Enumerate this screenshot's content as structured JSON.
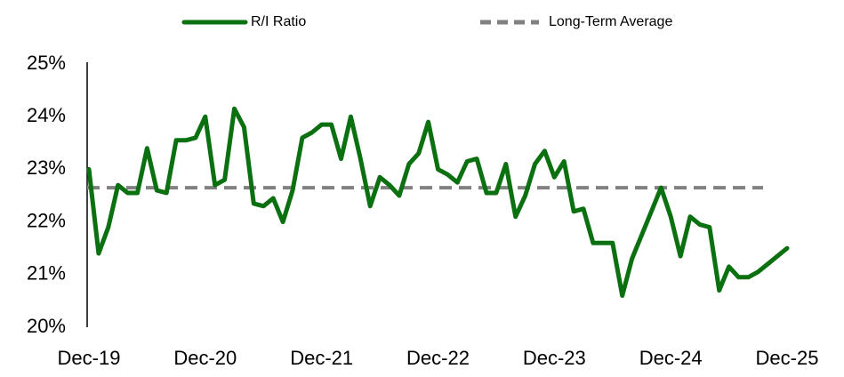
{
  "chart_data": {
    "type": "line",
    "categories": [
      "Dec-19",
      null,
      null,
      null,
      null,
      null,
      null,
      null,
      null,
      null,
      null,
      null,
      "Dec-20",
      null,
      null,
      null,
      null,
      null,
      null,
      null,
      null,
      null,
      null,
      null,
      "Dec-21",
      null,
      null,
      null,
      null,
      null,
      null,
      null,
      null,
      null,
      null,
      null,
      "Dec-22",
      null,
      null,
      null,
      null,
      null,
      null,
      null,
      null,
      null,
      null,
      null,
      "Dec-23",
      null,
      null,
      null,
      null,
      null,
      null,
      null,
      null,
      null,
      null,
      null,
      "Dec-24",
      null,
      null,
      null,
      null,
      null,
      null,
      null,
      null,
      null,
      null,
      null,
      "Dec-25"
    ],
    "series": [
      {
        "name": "R/I Ratio",
        "color": "#0a7010",
        "values": [
          23.0,
          21.4,
          21.9,
          22.7,
          22.55,
          22.55,
          23.4,
          22.6,
          22.55,
          23.55,
          23.55,
          23.6,
          24.0,
          22.7,
          22.8,
          24.15,
          23.8,
          22.35,
          22.3,
          22.45,
          22.0,
          22.6,
          23.6,
          23.7,
          23.85,
          23.85,
          23.2,
          24.0,
          23.2,
          22.3,
          22.85,
          22.7,
          22.5,
          23.1,
          23.3,
          23.9,
          23.0,
          22.9,
          22.75,
          23.15,
          23.2,
          22.55,
          22.55,
          23.1,
          22.1,
          22.5,
          23.1,
          23.35,
          22.85,
          23.15,
          22.2,
          22.25,
          21.6,
          21.6,
          21.6,
          20.6,
          21.3,
          21.75,
          22.2,
          22.65,
          22.1,
          21.35,
          22.1,
          21.95,
          21.9,
          20.7,
          21.15,
          20.95,
          20.95,
          21.05,
          21.2,
          21.35,
          21.5
        ]
      }
    ],
    "average": {
      "name": "Long-Term Average",
      "color": "#808080",
      "value": 22.65
    },
    "ylim": [
      20,
      25
    ],
    "yticks": [
      {
        "value": 20,
        "label": "20%"
      },
      {
        "value": 21,
        "label": "21%"
      },
      {
        "value": 22,
        "label": "22%"
      },
      {
        "value": 23,
        "label": "23%"
      },
      {
        "value": 24,
        "label": "24%"
      },
      {
        "value": 25,
        "label": "25%"
      }
    ]
  }
}
